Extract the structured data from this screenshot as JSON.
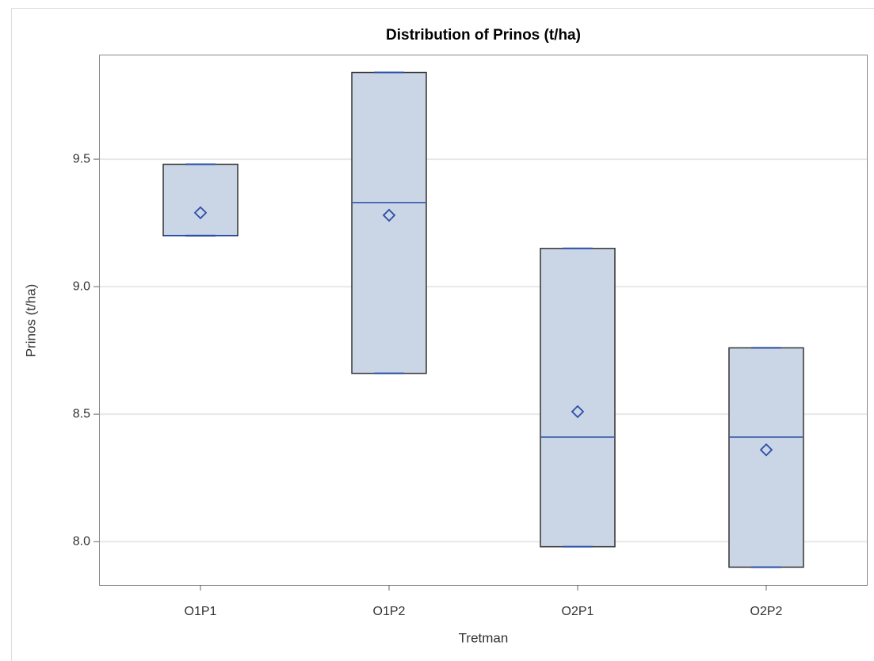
{
  "chart_data": {
    "type": "box",
    "title": "Distribution of Prinos (t/ha)",
    "x_label": "Tretman",
    "y_label": "Prinos (t/ha)",
    "categories": [
      "O1P1",
      "O1P2",
      "O2P1",
      "O2P2"
    ],
    "q1": [
      9.2,
      8.66,
      7.98,
      7.9
    ],
    "median": [
      9.2,
      9.33,
      8.41,
      8.41
    ],
    "q3": [
      9.48,
      9.84,
      9.15,
      8.76
    ],
    "mean": [
      9.29,
      9.28,
      8.51,
      8.36
    ],
    "color": "#cad5e5",
    "line_color": "#2a4fa8",
    "ylim": [
      7.83,
      9.91
    ],
    "yticks": [
      {
        "value": 8,
        "label": "8.0"
      },
      {
        "value": 8.5,
        "label": "8.5"
      },
      {
        "value": 9,
        "label": "9.0"
      },
      {
        "value": 9.5,
        "label": "9.5"
      }
    ],
    "grid": true
  }
}
